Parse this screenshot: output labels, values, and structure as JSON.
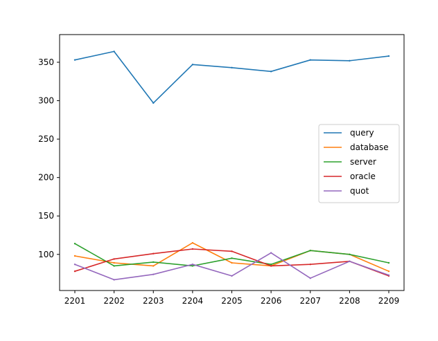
{
  "chart_data": {
    "type": "line",
    "title": "",
    "xlabel": "",
    "ylabel": "",
    "categories": [
      "2201",
      "2202",
      "2203",
      "2204",
      "2205",
      "2206",
      "2207",
      "2208",
      "2209"
    ],
    "ylim": [
      53,
      386
    ],
    "yticks": [
      100,
      150,
      200,
      250,
      300,
      350
    ],
    "grid": false,
    "legend_position": "center-right",
    "series": [
      {
        "name": "query",
        "color": "#1f77b4",
        "values": [
          353,
          364,
          297,
          347,
          343,
          338,
          353,
          352,
          358
        ]
      },
      {
        "name": "database",
        "color": "#ff7f0e",
        "values": [
          98,
          89,
          85,
          115,
          89,
          85,
          105,
          100,
          78
        ]
      },
      {
        "name": "server",
        "color": "#2ca02c",
        "values": [
          114,
          85,
          90,
          85,
          95,
          87,
          105,
          100,
          89
        ]
      },
      {
        "name": "oracle",
        "color": "#d62728",
        "values": [
          78,
          94,
          101,
          107,
          104,
          85,
          87,
          91,
          72
        ]
      },
      {
        "name": "quot",
        "color": "#9467bd",
        "values": [
          87,
          67,
          74,
          87,
          72,
          102,
          69,
          91,
          73
        ]
      }
    ]
  }
}
